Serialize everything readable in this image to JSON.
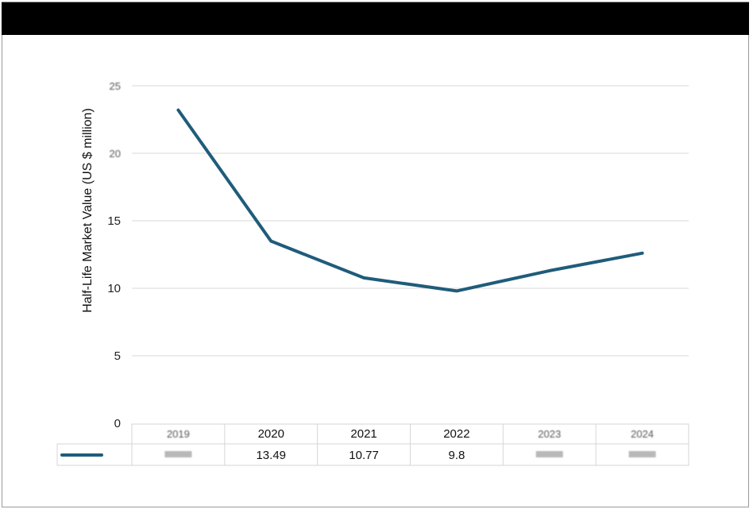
{
  "chart_data": {
    "type": "line",
    "ylabel": "Half-Life Market Value  (US $ million)",
    "ylim": [
      0,
      25
    ],
    "y_ticks": [
      "0",
      "5",
      "10",
      "15",
      "20",
      "25"
    ],
    "categories": [
      "2019",
      "2020",
      "2021",
      "2022",
      "2023",
      "2024"
    ],
    "series": [
      {
        "values": [
          23.2,
          13.49,
          10.77,
          9.8,
          11.3,
          12.6
        ],
        "color": "#1f5c7a"
      }
    ],
    "table": {
      "values_text": [
        "",
        "13.49",
        "10.77",
        "9.8",
        "",
        ""
      ]
    },
    "grid": true
  }
}
